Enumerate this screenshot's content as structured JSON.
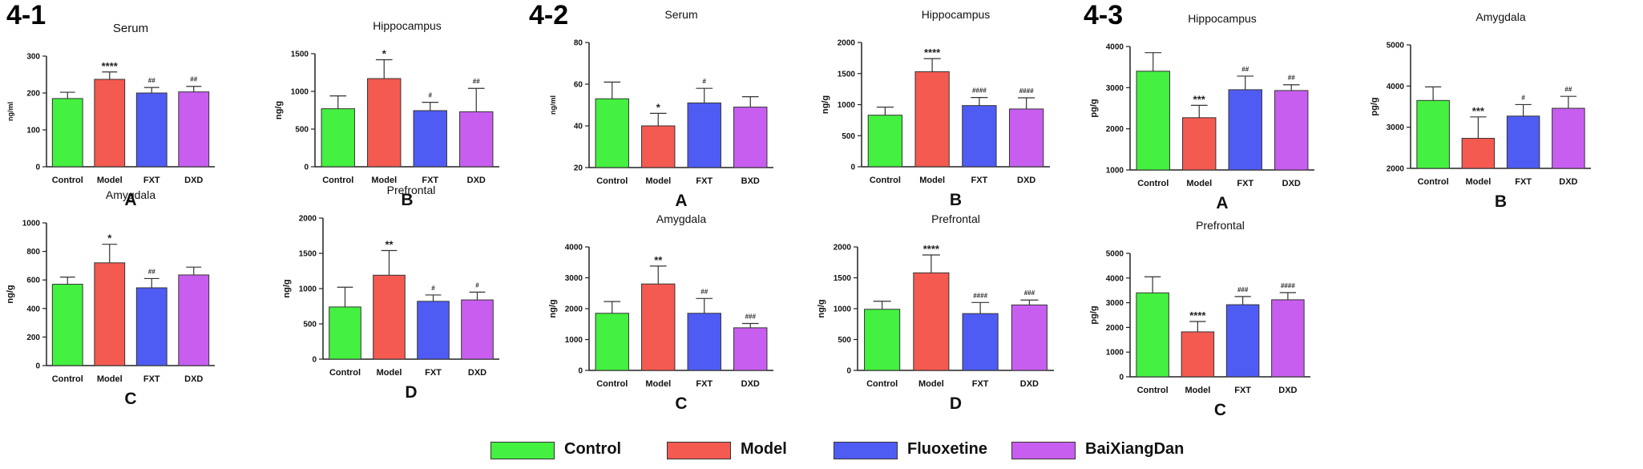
{
  "section_labels": [
    "4-1",
    "4-2",
    "4-3"
  ],
  "legend": [
    {
      "label": "Control",
      "color": "#44f040"
    },
    {
      "label": "Model",
      "color": "#f45a50"
    },
    {
      "label": "Fluoxetine",
      "color": "#4f5cf4"
    },
    {
      "label": "BaiXiangDan",
      "color": "#c85ef0"
    }
  ],
  "chart_data": [
    {
      "type": "bar",
      "section": "4-1",
      "panel": "A",
      "title": "Serum",
      "ylabel": "ng/ml",
      "ylim": [
        0,
        300
      ],
      "yticks": [
        0,
        100,
        200,
        300
      ],
      "categories": [
        "Control",
        "Model",
        "FXT",
        "DXD"
      ],
      "colors": [
        "#44f040",
        "#f45a50",
        "#4f5cf4",
        "#c85ef0"
      ],
      "values": [
        185,
        237,
        200,
        203
      ],
      "errors": [
        17,
        20,
        15,
        15
      ],
      "annotations": [
        "",
        "****",
        "##",
        "##"
      ]
    },
    {
      "type": "bar",
      "section": "4-1",
      "panel": "B",
      "title": "Hippocampus",
      "ylabel": "ng/g",
      "ylim": [
        0,
        1500
      ],
      "yticks": [
        0,
        500,
        1000,
        1500
      ],
      "categories": [
        "Control",
        "Model",
        "FXT",
        "DXD"
      ],
      "colors": [
        "#44f040",
        "#f45a50",
        "#4f5cf4",
        "#c85ef0"
      ],
      "values": [
        770,
        1170,
        745,
        730
      ],
      "errors": [
        170,
        250,
        110,
        310
      ],
      "annotations": [
        "",
        "*",
        "#",
        "##"
      ]
    },
    {
      "type": "bar",
      "section": "4-1",
      "panel": "C",
      "title": "Amygdala",
      "ylabel": "ng/g",
      "ylim": [
        0,
        1000
      ],
      "yticks": [
        0,
        200,
        400,
        600,
        800,
        1000
      ],
      "categories": [
        "Control",
        "Model",
        "FXT",
        "DXD"
      ],
      "colors": [
        "#44f040",
        "#f45a50",
        "#4f5cf4",
        "#c85ef0"
      ],
      "values": [
        570,
        720,
        545,
        635
      ],
      "errors": [
        50,
        130,
        65,
        55
      ],
      "annotations": [
        "",
        "*",
        "##",
        ""
      ]
    },
    {
      "type": "bar",
      "section": "4-1",
      "panel": "D",
      "title": "Prefrontal",
      "ylabel": "ng/g",
      "ylim": [
        0,
        2000
      ],
      "yticks": [
        0,
        500,
        1000,
        1500,
        2000
      ],
      "categories": [
        "Control",
        "Model",
        "FXT",
        "DXD"
      ],
      "colors": [
        "#44f040",
        "#f45a50",
        "#4f5cf4",
        "#c85ef0"
      ],
      "values": [
        740,
        1190,
        820,
        840
      ],
      "errors": [
        280,
        350,
        90,
        110
      ],
      "annotations": [
        "",
        "**",
        "#",
        "#"
      ]
    },
    {
      "type": "bar",
      "section": "4-2",
      "panel": "A",
      "title": "Serum",
      "ylabel": "ng/ml",
      "ylim": [
        20,
        80
      ],
      "yticks": [
        20,
        40,
        60,
        80
      ],
      "categories": [
        "Control",
        "Model",
        "FXT",
        "BXD"
      ],
      "colors": [
        "#44f040",
        "#f45a50",
        "#4f5cf4",
        "#c85ef0"
      ],
      "values": [
        53,
        40,
        51,
        49
      ],
      "errors": [
        8,
        6,
        7,
        5
      ],
      "annotations": [
        "",
        "*",
        "#",
        ""
      ]
    },
    {
      "type": "bar",
      "section": "4-2",
      "panel": "B",
      "title": "Hippocampus",
      "ylabel": "ng/g",
      "ylim": [
        0,
        2000
      ],
      "yticks": [
        0,
        500,
        1000,
        1500,
        2000
      ],
      "categories": [
        "Control",
        "Model",
        "FXT",
        "DXD"
      ],
      "colors": [
        "#44f040",
        "#f45a50",
        "#4f5cf4",
        "#c85ef0"
      ],
      "values": [
        830,
        1530,
        985,
        930
      ],
      "errors": [
        130,
        210,
        130,
        180
      ],
      "annotations": [
        "",
        "****",
        "####",
        "####"
      ]
    },
    {
      "type": "bar",
      "section": "4-2",
      "panel": "C",
      "title": "Amygdala",
      "ylabel": "ng/g",
      "ylim": [
        0,
        4000
      ],
      "yticks": [
        0,
        1000,
        2000,
        3000,
        4000
      ],
      "categories": [
        "Control",
        "Model",
        "FXT",
        "DXD"
      ],
      "colors": [
        "#44f040",
        "#f45a50",
        "#4f5cf4",
        "#c85ef0"
      ],
      "values": [
        1850,
        2800,
        1850,
        1380
      ],
      "errors": [
        380,
        580,
        480,
        140
      ],
      "annotations": [
        "",
        "**",
        "##",
        "###"
      ]
    },
    {
      "type": "bar",
      "section": "4-2",
      "panel": "D",
      "title": "Prefrontal",
      "ylabel": "ng/g",
      "ylim": [
        0,
        2000
      ],
      "yticks": [
        0,
        500,
        1000,
        1500,
        2000
      ],
      "categories": [
        "Control",
        "Model",
        "FXT",
        "DXD"
      ],
      "colors": [
        "#44f040",
        "#f45a50",
        "#4f5cf4",
        "#c85ef0"
      ],
      "values": [
        990,
        1580,
        920,
        1060
      ],
      "errors": [
        130,
        290,
        180,
        80
      ],
      "annotations": [
        "",
        "****",
        "####",
        "###"
      ]
    },
    {
      "type": "bar",
      "section": "4-3",
      "panel": "A",
      "title": "Hippocampus",
      "ylabel": "pg/g",
      "ylim": [
        1000,
        4000
      ],
      "yticks": [
        1000,
        2000,
        3000,
        4000
      ],
      "categories": [
        "Control",
        "Model",
        "FXT",
        "DXD"
      ],
      "colors": [
        "#44f040",
        "#f45a50",
        "#4f5cf4",
        "#c85ef0"
      ],
      "values": [
        3400,
        2270,
        2950,
        2930
      ],
      "errors": [
        450,
        300,
        330,
        140
      ],
      "annotations": [
        "",
        "***",
        "##",
        "##"
      ]
    },
    {
      "type": "bar",
      "section": "4-3",
      "panel": "B",
      "title": "Amygdala",
      "ylabel": "pg/g",
      "ylim": [
        2000,
        5000
      ],
      "yticks": [
        2000,
        3000,
        4000,
        5000
      ],
      "categories": [
        "Control",
        "Model",
        "FXT",
        "DXD"
      ],
      "colors": [
        "#44f040",
        "#f45a50",
        "#4f5cf4",
        "#c85ef0"
      ],
      "values": [
        3650,
        2730,
        3270,
        3460
      ],
      "errors": [
        330,
        520,
        280,
        290
      ],
      "annotations": [
        "",
        "***",
        "#",
        "##"
      ]
    },
    {
      "type": "bar",
      "section": "4-3",
      "panel": "C",
      "title": "Prefrontal",
      "ylabel": "pg/g",
      "ylim": [
        0,
        5000
      ],
      "yticks": [
        0,
        1000,
        2000,
        3000,
        4000,
        5000
      ],
      "categories": [
        "Control",
        "Model",
        "FXT",
        "DXD"
      ],
      "colors": [
        "#44f040",
        "#f45a50",
        "#4f5cf4",
        "#c85ef0"
      ],
      "values": [
        3400,
        1820,
        2920,
        3120
      ],
      "errors": [
        650,
        420,
        330,
        290
      ],
      "annotations": [
        "",
        "****",
        "###",
        "####"
      ]
    }
  ]
}
